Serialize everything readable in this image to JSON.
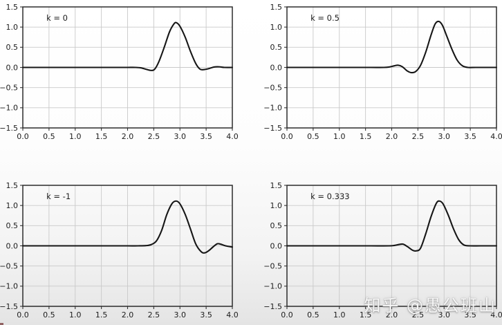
{
  "page": {
    "watermark": "知乎 @愚公班山"
  },
  "style": {
    "line_color": "#161616",
    "grid_color": "#c9c9c9",
    "spine_color": "#2b2b2b",
    "tick_color": "#333333",
    "text_color": "#1c1c1c"
  },
  "chart_data": [
    {
      "type": "line",
      "label": "k = 0",
      "xlim": [
        0,
        4
      ],
      "ylim": [
        -1.5,
        1.5
      ],
      "grid": true,
      "legend_position": "none",
      "xticks": [
        0,
        0.5,
        1,
        1.5,
        2,
        2.5,
        3,
        3.5,
        4
      ],
      "xtick_labels": [
        "0.0",
        "0.5",
        "1.0",
        "1.5",
        "2.0",
        "2.5",
        "3.0",
        "3.5",
        "4.0"
      ],
      "yticks": [
        1.5,
        1.0,
        0.5,
        0.0,
        -0.5,
        -1.0,
        -1.5
      ],
      "ytick_labels": [
        "1.5",
        "1.0",
        "0.5",
        "0.0",
        "−0.5",
        "−1.0",
        "−1.5"
      ],
      "points": [
        [
          0,
          0
        ],
        [
          0.3,
          0
        ],
        [
          0.6,
          0
        ],
        [
          0.9,
          0
        ],
        [
          1.2,
          0
        ],
        [
          1.5,
          0
        ],
        [
          1.8,
          0
        ],
        [
          2.0,
          0
        ],
        [
          2.15,
          0
        ],
        [
          2.25,
          -0.01
        ],
        [
          2.35,
          -0.045
        ],
        [
          2.45,
          -0.075
        ],
        [
          2.52,
          -0.04
        ],
        [
          2.6,
          0.15
        ],
        [
          2.7,
          0.5
        ],
        [
          2.8,
          0.88
        ],
        [
          2.88,
          1.07
        ],
        [
          2.93,
          1.11
        ],
        [
          3.0,
          1.02
        ],
        [
          3.1,
          0.75
        ],
        [
          3.2,
          0.4
        ],
        [
          3.3,
          0.1
        ],
        [
          3.38,
          -0.04
        ],
        [
          3.45,
          -0.055
        ],
        [
          3.55,
          -0.03
        ],
        [
          3.65,
          0.01
        ],
        [
          3.75,
          0.015
        ],
        [
          3.85,
          0
        ],
        [
          4,
          0
        ]
      ]
    },
    {
      "type": "line",
      "label": "k = 0.5",
      "xlim": [
        0,
        4
      ],
      "ylim": [
        -1.5,
        1.5
      ],
      "grid": true,
      "legend_position": "none",
      "xticks": [
        0,
        0.5,
        1,
        1.5,
        2,
        2.5,
        3,
        3.5,
        4
      ],
      "xtick_labels": [
        "0.0",
        "0.5",
        "1.0",
        "1.5",
        "2.0",
        "2.5",
        "3.0",
        "3.5",
        "4.0"
      ],
      "yticks": [
        1.5,
        1.0,
        0.5,
        0.0,
        -0.5,
        -1.0,
        -1.5
      ],
      "ytick_labels": [
        "1.5",
        "1.0",
        "0.5",
        "0.0",
        "−0.5",
        "−1.0",
        "−1.5"
      ],
      "points": [
        [
          0,
          0
        ],
        [
          0.4,
          0
        ],
        [
          0.8,
          0
        ],
        [
          1.2,
          0
        ],
        [
          1.6,
          0
        ],
        [
          1.85,
          0
        ],
        [
          1.95,
          0.01
        ],
        [
          2.05,
          0.04
        ],
        [
          2.12,
          0.055
        ],
        [
          2.2,
          0.02
        ],
        [
          2.3,
          -0.09
        ],
        [
          2.38,
          -0.13
        ],
        [
          2.46,
          -0.1
        ],
        [
          2.55,
          0.05
        ],
        [
          2.65,
          0.38
        ],
        [
          2.75,
          0.8
        ],
        [
          2.83,
          1.08
        ],
        [
          2.9,
          1.14
        ],
        [
          2.97,
          1.04
        ],
        [
          3.05,
          0.78
        ],
        [
          3.15,
          0.45
        ],
        [
          3.25,
          0.18
        ],
        [
          3.35,
          0.04
        ],
        [
          3.45,
          0
        ],
        [
          3.6,
          0
        ],
        [
          3.8,
          0
        ],
        [
          4,
          0
        ]
      ]
    },
    {
      "type": "line",
      "label": "k = -1",
      "xlim": [
        0,
        4
      ],
      "ylim": [
        -1.5,
        1.5
      ],
      "grid": true,
      "legend_position": "none",
      "xticks": [
        0,
        0.5,
        1,
        1.5,
        2,
        2.5,
        3,
        3.5,
        4
      ],
      "xtick_labels": [
        "0.0",
        "0.5",
        "1.0",
        "1.5",
        "2.0",
        "2.5",
        "3.0",
        "3.5",
        "4.0"
      ],
      "yticks": [
        1.5,
        1.0,
        0.5,
        0.0,
        -0.5,
        -1.0,
        -1.5
      ],
      "ytick_labels": [
        "1.5",
        "1.0",
        "0.5",
        "0.0",
        "−0.5",
        "−1.0",
        "−1.5"
      ],
      "points": [
        [
          0,
          0
        ],
        [
          0.4,
          0
        ],
        [
          0.8,
          0
        ],
        [
          1.2,
          0
        ],
        [
          1.6,
          0
        ],
        [
          2.0,
          0
        ],
        [
          2.2,
          0
        ],
        [
          2.35,
          0.005
        ],
        [
          2.45,
          0.03
        ],
        [
          2.55,
          0.12
        ],
        [
          2.65,
          0.38
        ],
        [
          2.75,
          0.78
        ],
        [
          2.85,
          1.05
        ],
        [
          2.93,
          1.11
        ],
        [
          3.0,
          1.04
        ],
        [
          3.1,
          0.78
        ],
        [
          3.2,
          0.42
        ],
        [
          3.3,
          0.05
        ],
        [
          3.4,
          -0.14
        ],
        [
          3.47,
          -0.175
        ],
        [
          3.55,
          -0.12
        ],
        [
          3.63,
          -0.03
        ],
        [
          3.71,
          0.05
        ],
        [
          3.78,
          0.04
        ],
        [
          3.87,
          0
        ],
        [
          4,
          -0.03
        ]
      ]
    },
    {
      "type": "line",
      "label": "k = 0.333",
      "xlim": [
        0,
        4
      ],
      "ylim": [
        -1.5,
        1.5
      ],
      "grid": true,
      "legend_position": "none",
      "xticks": [
        0,
        0.5,
        1,
        1.5,
        2,
        2.5,
        3,
        3.5,
        4
      ],
      "xtick_labels": [
        "0.0",
        "0.5",
        "1.0",
        "1.5",
        "2.0",
        "2.5",
        "3.0",
        "3.5",
        "4.0"
      ],
      "yticks": [
        1.5,
        1.0,
        0.5,
        0.0,
        -0.5,
        -1.0,
        -1.5
      ],
      "ytick_labels": [
        "1.5",
        "1.0",
        "0.5",
        "0.0",
        "−0.5",
        "−1.0",
        "−1.5"
      ],
      "points": [
        [
          0,
          0
        ],
        [
          0.4,
          0
        ],
        [
          0.8,
          0
        ],
        [
          1.2,
          0
        ],
        [
          1.6,
          0
        ],
        [
          1.95,
          0
        ],
        [
          2.05,
          0.01
        ],
        [
          2.15,
          0.035
        ],
        [
          2.22,
          0.04
        ],
        [
          2.3,
          -0.02
        ],
        [
          2.4,
          -0.11
        ],
        [
          2.47,
          -0.125
        ],
        [
          2.55,
          -0.06
        ],
        [
          2.65,
          0.3
        ],
        [
          2.75,
          0.72
        ],
        [
          2.85,
          1.05
        ],
        [
          2.91,
          1.11
        ],
        [
          2.98,
          1.04
        ],
        [
          3.08,
          0.76
        ],
        [
          3.18,
          0.42
        ],
        [
          3.28,
          0.15
        ],
        [
          3.38,
          0.02
        ],
        [
          3.5,
          0
        ],
        [
          3.7,
          0
        ],
        [
          4,
          0
        ]
      ]
    }
  ]
}
